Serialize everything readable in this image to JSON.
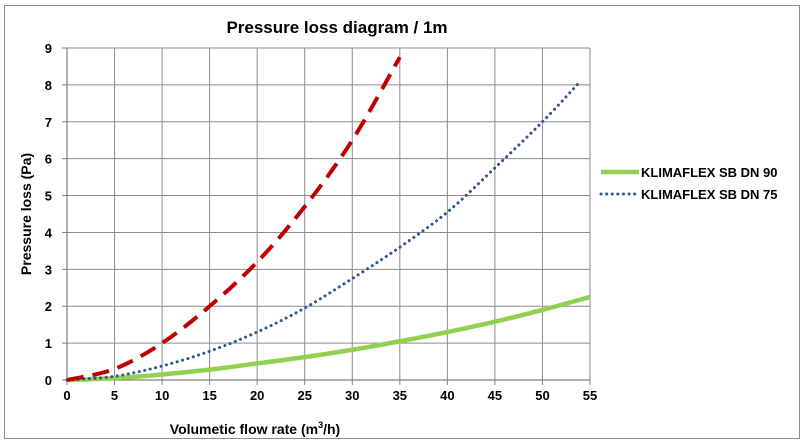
{
  "chart_data": {
    "type": "line",
    "title": "Pressure loss diagram / 1m",
    "xlabel_prefix": "Volumetic flow rate (m",
    "xlabel_sup": "3",
    "xlabel_suffix": "/h)",
    "ylabel": "Pressure loss  (Pa)",
    "xlim": [
      0,
      55
    ],
    "ylim": [
      0,
      9
    ],
    "xticks": [
      "0",
      "5",
      "10",
      "15",
      "20",
      "25",
      "30",
      "35",
      "40",
      "45",
      "50",
      "55"
    ],
    "yticks": [
      "0",
      "1",
      "2",
      "3",
      "4",
      "5",
      "6",
      "7",
      "8",
      "9"
    ],
    "grid": true,
    "legend_position": "right",
    "series": [
      {
        "name": "KLIMAFLEX SB DN 90",
        "color": "#92d050",
        "style": "solid",
        "x": [
          0,
          5,
          10,
          15,
          20,
          25,
          30,
          35,
          40,
          45,
          50,
          55
        ],
        "y": [
          0,
          0.05,
          0.15,
          0.28,
          0.45,
          0.62,
          0.82,
          1.05,
          1.3,
          1.58,
          1.9,
          2.25
        ],
        "in_legend": true
      },
      {
        "name": "KLIMAFLEX SB DN 75",
        "color": "#2e5596",
        "style": "dotted",
        "x": [
          0,
          5,
          10,
          15,
          20,
          25,
          30,
          35,
          40,
          45,
          50,
          54
        ],
        "y": [
          0,
          0.1,
          0.38,
          0.78,
          1.3,
          1.95,
          2.75,
          3.6,
          4.55,
          5.75,
          7.0,
          8.1
        ],
        "in_legend": true
      },
      {
        "name": "",
        "color": "#c00000",
        "style": "dashed",
        "x": [
          0,
          5,
          10,
          15,
          20,
          25,
          30,
          35
        ],
        "y": [
          0,
          0.3,
          1.0,
          2.0,
          3.2,
          4.7,
          6.5,
          8.75
        ],
        "in_legend": false
      }
    ]
  }
}
